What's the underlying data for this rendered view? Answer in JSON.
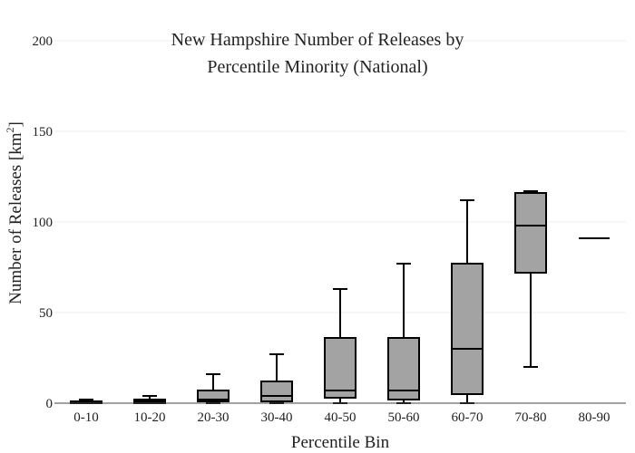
{
  "chart_data": {
    "type": "box",
    "title": [
      "New Hampshire Number of Releases by",
      "Percentile Minority (National)"
    ],
    "xlabel": "Percentile Bin",
    "ylabel": "Number of Releases  [km",
    "ylabel_sup": "2",
    "ylabel_close": "]",
    "ylim": [
      0,
      200
    ],
    "yticks": [
      0,
      50,
      100,
      150,
      200
    ],
    "grid": true,
    "categories": [
      "0-10",
      "10-20",
      "20-30",
      "30-40",
      "40-50",
      "50-60",
      "60-70",
      "70-80",
      "80-90"
    ],
    "boxes": [
      {
        "min": 0,
        "q1": 0,
        "median": 0.5,
        "q3": 1,
        "max": 2
      },
      {
        "min": 0,
        "q1": 0,
        "median": 1,
        "q3": 2,
        "max": 4
      },
      {
        "min": 0,
        "q1": 1,
        "median": 2,
        "q3": 7,
        "max": 16
      },
      {
        "min": 0,
        "q1": 1,
        "median": 4,
        "q3": 12,
        "max": 27
      },
      {
        "min": 0,
        "q1": 3,
        "median": 7,
        "q3": 36,
        "max": 63
      },
      {
        "min": 0,
        "q1": 2,
        "median": 7,
        "q3": 36,
        "max": 77
      },
      {
        "min": 0,
        "q1": 5,
        "median": 30,
        "q3": 77,
        "max": 112
      },
      {
        "min": 20,
        "q1": 72,
        "median": 98,
        "q3": 116,
        "max": 117
      },
      {
        "min": 91,
        "q1": 91,
        "median": 91,
        "q3": 91,
        "max": 91
      }
    ],
    "box_fill": "#a3a3a3",
    "line_color": "#000000"
  }
}
